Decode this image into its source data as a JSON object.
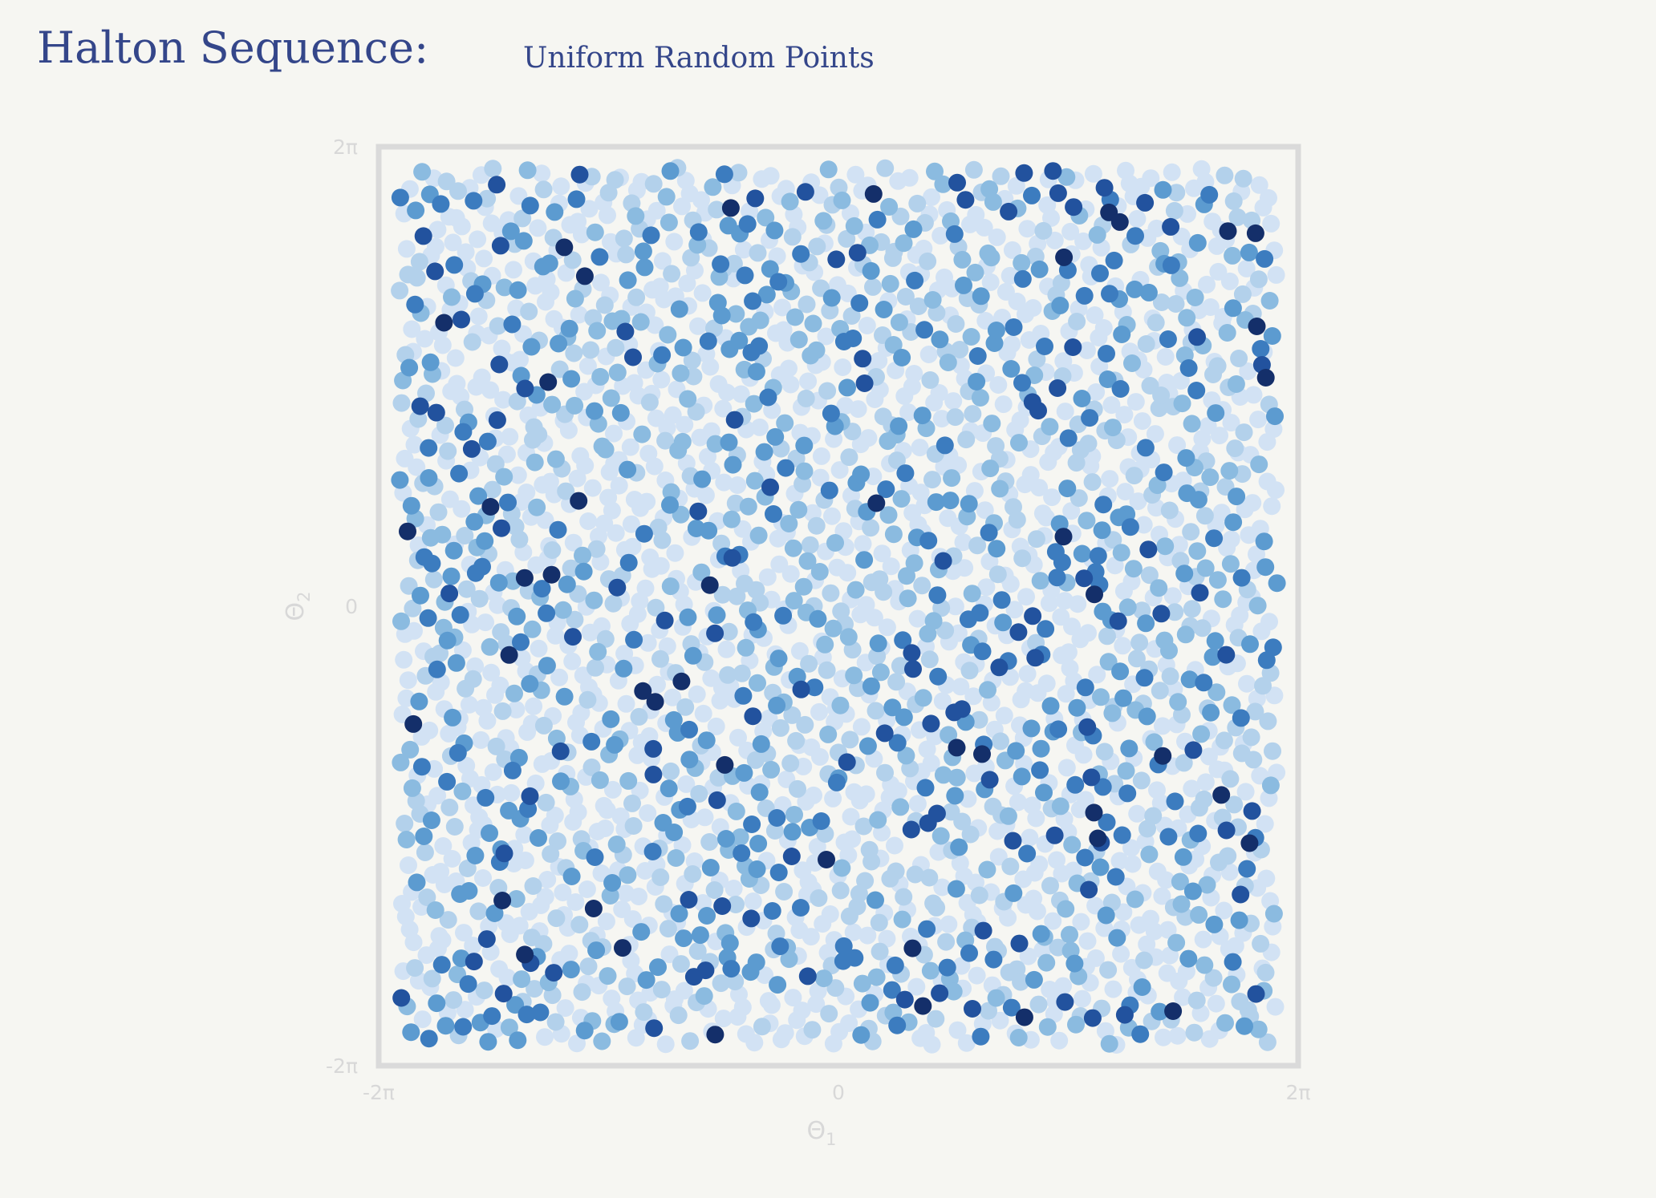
{
  "header": {
    "title": "Halton Sequence:",
    "subtitle": "Uniform Random Points"
  },
  "chart_data": {
    "type": "scatter",
    "title": "Halton Sequence:",
    "subtitle": "Uniform Random Points",
    "xlabel": "Θ",
    "xlabel_sub": "1",
    "ylabel": "Θ",
    "ylabel_sub": "2",
    "xlim": [
      -6.283185,
      6.283185
    ],
    "ylim": [
      -6.283185,
      6.283185
    ],
    "x_ticks": [
      {
        "value": -6.283185,
        "label": "-2π"
      },
      {
        "value": 0,
        "label": "0"
      },
      {
        "value": 6.283185,
        "label": "2π"
      }
    ],
    "y_ticks": [
      {
        "value": -6.283185,
        "label": "-2π"
      },
      {
        "value": 0,
        "label": "0"
      },
      {
        "value": 6.283185,
        "label": "2π"
      }
    ],
    "sequence": "halton",
    "bases": [
      2,
      3
    ],
    "point_count": 2500,
    "point_range": [
      -6.0,
      6.0
    ],
    "grid": false,
    "frame_color": "#dadada",
    "color_scale": [
      "#d2e2f4",
      "#b3d1eb",
      "#8bbbe0",
      "#5c9bd0",
      "#3c7cbf",
      "#22529e",
      "#142f6a"
    ],
    "color_weights": [
      0.46,
      0.2,
      0.12,
      0.09,
      0.07,
      0.04,
      0.02
    ],
    "colors": {
      "title": "#34468a",
      "background": "#f6f6f2",
      "axis_text": "#d8d8d8"
    }
  }
}
